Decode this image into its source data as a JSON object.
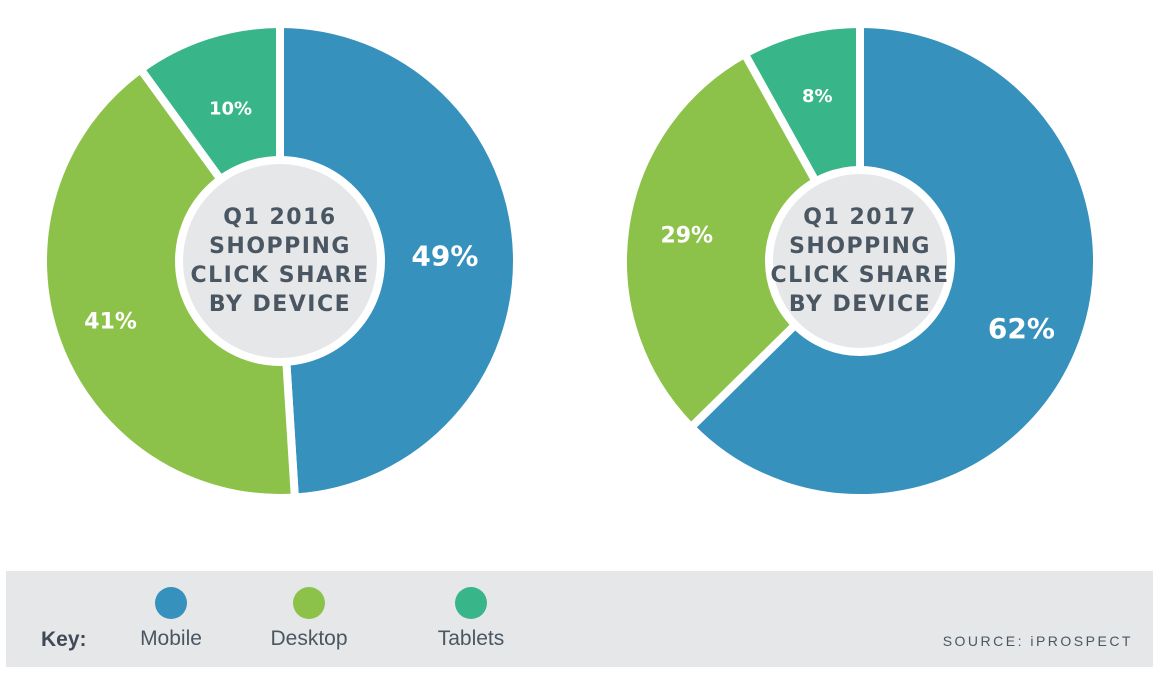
{
  "chart_data": [
    {
      "type": "pie",
      "title": "Q1 2016 SHOPPING CLICK SHARE BY DEVICE",
      "title_lines": [
        "Q1 2016",
        "SHOPPING",
        "CLICK SHARE",
        "BY DEVICE"
      ],
      "categories": [
        "Mobile",
        "Desktop",
        "Tablets"
      ],
      "values": [
        49,
        41,
        10
      ],
      "labels": [
        "49%",
        "41%",
        "10%"
      ]
    },
    {
      "type": "pie",
      "title": "Q1 2017 SHOPPING CLICK SHARE BY DEVICE",
      "title_lines": [
        "Q1 2017",
        "SHOPPING",
        "CLICK SHARE",
        "BY DEVICE"
      ],
      "categories": [
        "Mobile",
        "Desktop",
        "Tablets"
      ],
      "values": [
        62,
        29,
        8
      ],
      "labels": [
        "62%",
        "29%",
        "8%"
      ]
    }
  ],
  "colors": {
    "Mobile": "#3691bd",
    "Desktop": "#8dc24a",
    "Tablets": "#38b689",
    "center": "#e6e7e8"
  },
  "legend": {
    "key_label": "Key:",
    "items": [
      {
        "name": "Mobile",
        "color": "#3691bd"
      },
      {
        "name": "Desktop",
        "color": "#8dc24a"
      },
      {
        "name": "Tablets",
        "color": "#38b689"
      }
    ]
  },
  "source": "SOURCE: iPROSPECT"
}
